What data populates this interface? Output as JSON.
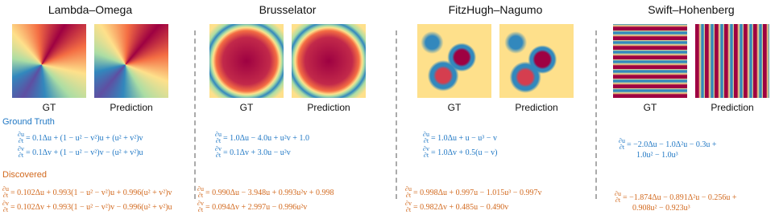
{
  "legend": {
    "ground_truth": "Ground Truth",
    "discovered": "Discovered"
  },
  "panels": [
    {
      "title": "Lambda–Omega",
      "image_labels": [
        "GT",
        "Prediction"
      ],
      "ground_truth": [
        {
          "num": "∂u",
          "den": "∂t",
          "rhs": "= 0.1Δu + (1 − u² − v²)u + (u² + v²)v"
        },
        {
          "num": "∂v",
          "den": "∂t",
          "rhs": "= 0.1Δv + (1 − u² − v²)v − (u² + v²)u"
        }
      ],
      "discovered": [
        {
          "num": "∂u",
          "den": "∂t",
          "rhs": "= 0.102Δu + 0.993(1 − u² − v²)u + 0.996(u² + v²)v"
        },
        {
          "num": "∂v",
          "den": "∂t",
          "rhs": "= 0.102Δv + 0.993(1 − u² − v²)v − 0.996(u² + v²)u"
        }
      ]
    },
    {
      "title": "Brusselator",
      "image_labels": [
        "GT",
        "Prediction"
      ],
      "ground_truth": [
        {
          "num": "∂u",
          "den": "∂t",
          "rhs": "= 1.0Δu − 4.0u + u²v + 1.0"
        },
        {
          "num": "∂v",
          "den": "∂t",
          "rhs": "= 0.1Δv + 3.0u − u²v"
        }
      ],
      "discovered": [
        {
          "num": "∂u",
          "den": "∂t",
          "rhs": "= 0.990Δu − 3.948u + 0.993u²v + 0.998"
        },
        {
          "num": "∂v",
          "den": "∂t",
          "rhs": "= 0.094Δv + 2.997u − 0.996u²v"
        }
      ]
    },
    {
      "title": "FitzHugh–Nagumo",
      "image_labels": [
        "GT",
        "Prediction"
      ],
      "ground_truth": [
        {
          "num": "∂u",
          "den": "∂t",
          "rhs": "= 1.0Δu + u − u³ − v"
        },
        {
          "num": "∂v",
          "den": "∂t",
          "rhs": "= 1.0Δv + 0.5(u − v)"
        }
      ],
      "discovered": [
        {
          "num": "∂u",
          "den": "∂t",
          "rhs": "= 0.998Δu + 0.997u − 1.015u³ − 0.997v"
        },
        {
          "num": "∂v",
          "den": "∂t",
          "rhs": "= 0.982Δv + 0.485u − 0.490v"
        }
      ]
    },
    {
      "title": "Swift–Hohenberg",
      "image_labels": [
        "GT",
        "Prediction"
      ],
      "ground_truth": [
        {
          "num": "∂u",
          "den": "∂t",
          "rhs": "= −2.0Δu − 1.0Δ²u − 0.3u +",
          "cont": "1.0u² − 1.0u³"
        }
      ],
      "discovered": [
        {
          "num": "∂u",
          "den": "∂t",
          "rhs": "= −1.874Δu − 0.891Δ²u − 0.256u +",
          "cont": "0.908u² − 0.923u³"
        }
      ]
    }
  ]
}
